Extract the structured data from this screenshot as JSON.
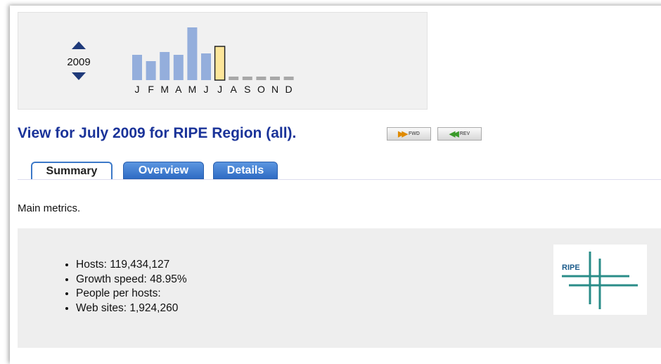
{
  "year": "2009",
  "chart_data": {
    "type": "bar",
    "categories": [
      "J",
      "F",
      "M",
      "A",
      "M",
      "J",
      "J",
      "A",
      "S",
      "O",
      "N",
      "D"
    ],
    "values": [
      36,
      27,
      40,
      36,
      75,
      38,
      48,
      null,
      null,
      null,
      null,
      null
    ],
    "color": "#94aedc",
    "highlight_index": 6,
    "highlight_color": "#fde69a"
  },
  "heading": "View for July 2009 for RIPE Region (all).",
  "buttons": [
    "FWD",
    "REV"
  ],
  "tabs": [
    "Summary",
    "Overview",
    "Details"
  ],
  "active_tab": 0,
  "intro": "Main metrics.",
  "metrics": [
    "Hosts: 119,434,127",
    "Growth speed: 48.95%",
    "People per hosts:",
    "Web sites: 1,924,260"
  ],
  "logo": "RIPE"
}
